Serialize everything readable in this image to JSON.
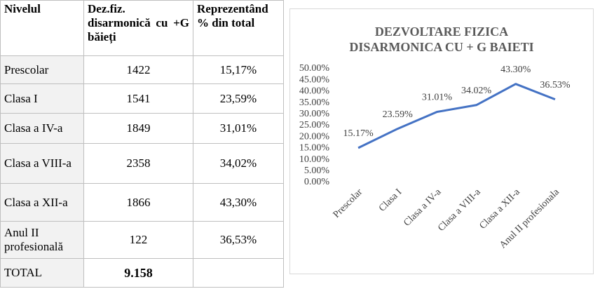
{
  "table": {
    "header": [
      "Nivelul",
      "Dez.fiz. disarmonică cu +G băieți",
      "Reprezentând % din total"
    ],
    "rows": [
      [
        "Prescolar",
        "1422",
        "15,17%"
      ],
      [
        "Clasa I",
        "1541",
        "23,59%"
      ],
      [
        "Clasa a IV-a",
        "1849",
        "31,01%"
      ],
      [
        "Clasa a VIII-a",
        "2358",
        "34,02%"
      ],
      [
        "Clasa a XII-a",
        "1866",
        "43,30%"
      ],
      [
        "Anul II profesională",
        "122",
        "36,53%"
      ]
    ],
    "total": [
      "TOTAL",
      "9.158"
    ]
  },
  "chart_data": {
    "type": "line",
    "title": "DEZVOLTARE FIZICA DISARMONICA CU + G BAIETI",
    "categories": [
      "Prescolar",
      "Clasa I",
      "Clasa a IV-a",
      "Clasa a VIII-a",
      "Clasa a XII-a",
      "Anul II profesionala"
    ],
    "series": [
      {
        "color": "#4472c4",
        "values": [
          15.17,
          23.59,
          31.01,
          34.02,
          43.3,
          36.53
        ],
        "value_labels": [
          "15.17%",
          "23.59%",
          "31.01%",
          "34.02%",
          "43.30%",
          "36.53%"
        ]
      }
    ],
    "ylim": [
      0,
      50
    ],
    "yticks": [
      {
        "value": 0,
        "label": "0.00%"
      },
      {
        "value": 5,
        "label": "5.00%"
      },
      {
        "value": 10,
        "label": "10.00%"
      },
      {
        "value": 15,
        "label": "15.00%"
      },
      {
        "value": 20,
        "label": "20.00%"
      },
      {
        "value": 25,
        "label": "25.00%"
      },
      {
        "value": 30,
        "label": "30.00%"
      },
      {
        "value": 35,
        "label": "35.00%"
      },
      {
        "value": 40,
        "label": "40.00%"
      },
      {
        "value": 45,
        "label": "45.00%"
      },
      {
        "value": 50,
        "label": "50.00%"
      }
    ]
  }
}
